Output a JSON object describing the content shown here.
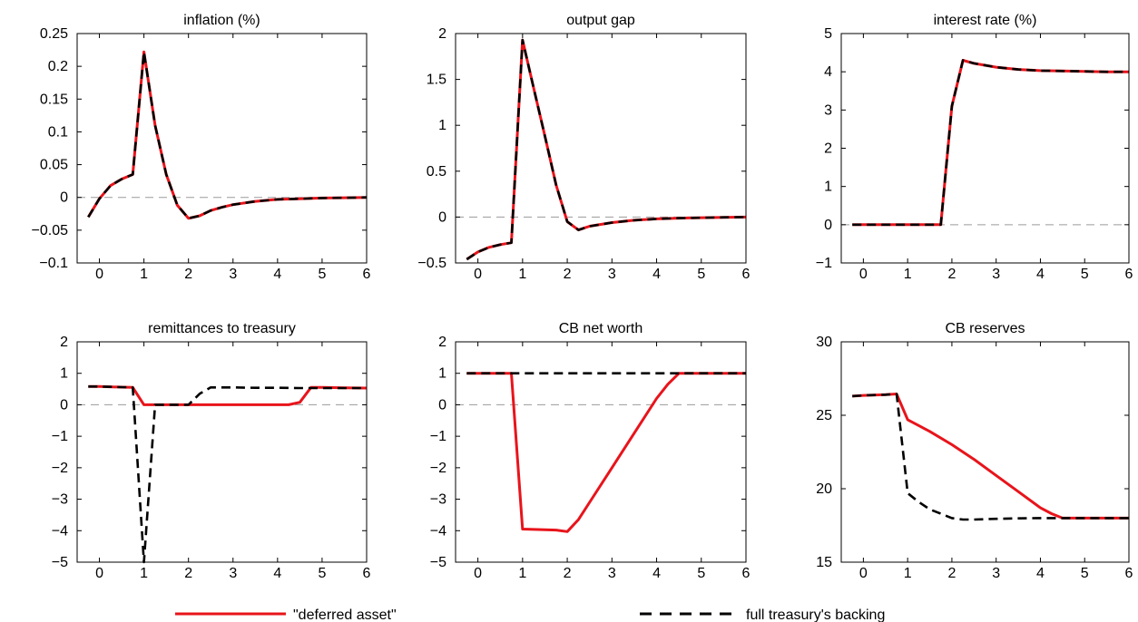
{
  "legend": {
    "red_label": "\"deferred asset\"",
    "black_label": "full treasury's backing"
  },
  "colors": {
    "deferred_asset": "#e8141b",
    "full_backing": "#000000",
    "zero_line": "#9a9a9a"
  },
  "chart_data": [
    {
      "type": "line",
      "title": "inflation (%)",
      "xlim": [
        -0.5,
        6
      ],
      "ylim": [
        -0.1,
        0.25
      ],
      "xticks": [
        0,
        1,
        2,
        3,
        4,
        5,
        6
      ],
      "yticks": [
        -0.1,
        -0.05,
        0,
        0.05,
        0.1,
        0.15,
        0.2,
        0.25
      ],
      "ytick_labels": [
        "−0.1",
        "−0.05",
        "0",
        "0.05",
        "0.1",
        "0.15",
        "0.2",
        "0.25"
      ],
      "zero_line": true,
      "series": [
        {
          "key": "deferred",
          "x": [
            -0.25,
            0,
            0.25,
            0.5,
            0.75,
            1,
            1.25,
            1.5,
            1.75,
            2,
            2.25,
            2.5,
            2.75,
            3,
            3.5,
            4,
            4.5,
            5,
            5.5,
            6
          ],
          "y": [
            -0.03,
            -0.002,
            0.018,
            0.028,
            0.035,
            0.222,
            0.11,
            0.035,
            -0.012,
            -0.032,
            -0.028,
            -0.02,
            -0.015,
            -0.011,
            -0.006,
            -0.003,
            -0.002,
            -0.001,
            -0.0005,
            0
          ]
        },
        {
          "key": "full",
          "x": [
            -0.25,
            0,
            0.25,
            0.5,
            0.75,
            1,
            1.25,
            1.5,
            1.75,
            2,
            2.25,
            2.5,
            2.75,
            3,
            3.5,
            4,
            4.5,
            5,
            5.5,
            6
          ],
          "y": [
            -0.03,
            -0.002,
            0.018,
            0.028,
            0.035,
            0.222,
            0.11,
            0.035,
            -0.012,
            -0.032,
            -0.028,
            -0.02,
            -0.015,
            -0.011,
            -0.006,
            -0.003,
            -0.002,
            -0.001,
            -0.0005,
            0
          ]
        }
      ]
    },
    {
      "type": "line",
      "title": "output gap",
      "xlim": [
        -0.5,
        6
      ],
      "ylim": [
        -0.5,
        2
      ],
      "xticks": [
        0,
        1,
        2,
        3,
        4,
        5,
        6
      ],
      "yticks": [
        -0.5,
        0,
        0.5,
        1,
        1.5,
        2
      ],
      "ytick_labels": [
        "−0.5",
        "0",
        "0.5",
        "1",
        "1.5",
        "2"
      ],
      "zero_line": true,
      "series": [
        {
          "key": "deferred",
          "x": [
            -0.25,
            0,
            0.25,
            0.5,
            0.75,
            1,
            1.25,
            1.5,
            1.75,
            2,
            2.25,
            2.5,
            3,
            3.5,
            4,
            4.5,
            5,
            5.5,
            6
          ],
          "y": [
            -0.46,
            -0.38,
            -0.33,
            -0.3,
            -0.28,
            1.93,
            1.4,
            0.88,
            0.35,
            -0.05,
            -0.14,
            -0.1,
            -0.06,
            -0.035,
            -0.02,
            -0.012,
            -0.007,
            -0.003,
            0
          ]
        },
        {
          "key": "full",
          "x": [
            -0.25,
            0,
            0.25,
            0.5,
            0.75,
            1,
            1.25,
            1.5,
            1.75,
            2,
            2.25,
            2.5,
            3,
            3.5,
            4,
            4.5,
            5,
            5.5,
            6
          ],
          "y": [
            -0.46,
            -0.38,
            -0.33,
            -0.3,
            -0.28,
            1.93,
            1.4,
            0.88,
            0.35,
            -0.05,
            -0.14,
            -0.1,
            -0.06,
            -0.035,
            -0.02,
            -0.012,
            -0.007,
            -0.003,
            0
          ]
        }
      ]
    },
    {
      "type": "line",
      "title": "interest rate (%)",
      "xlim": [
        -0.5,
        6
      ],
      "ylim": [
        -1,
        5
      ],
      "xticks": [
        0,
        1,
        2,
        3,
        4,
        5,
        6
      ],
      "yticks": [
        -1,
        0,
        1,
        2,
        3,
        4,
        5
      ],
      "ytick_labels": [
        "−1",
        "0",
        "1",
        "2",
        "3",
        "4",
        "5"
      ],
      "zero_line": true,
      "series": [
        {
          "key": "deferred",
          "x": [
            -0.25,
            0,
            0.5,
            1,
            1.5,
            1.75,
            2,
            2.25,
            2.5,
            3,
            3.5,
            4,
            4.5,
            5,
            5.5,
            6
          ],
          "y": [
            0,
            0,
            0,
            0,
            0,
            0,
            3.1,
            4.3,
            4.22,
            4.12,
            4.06,
            4.03,
            4.02,
            4.01,
            4.0,
            4.0
          ]
        },
        {
          "key": "full",
          "x": [
            -0.25,
            0,
            0.5,
            1,
            1.5,
            1.75,
            2,
            2.25,
            2.5,
            3,
            3.5,
            4,
            4.5,
            5,
            5.5,
            6
          ],
          "y": [
            0,
            0,
            0,
            0,
            0,
            0,
            3.1,
            4.3,
            4.22,
            4.12,
            4.06,
            4.03,
            4.02,
            4.01,
            4.0,
            4.0
          ]
        }
      ]
    },
    {
      "type": "line",
      "title": "remittances to treasury",
      "xlim": [
        -0.5,
        6
      ],
      "ylim": [
        -5,
        2
      ],
      "xticks": [
        0,
        1,
        2,
        3,
        4,
        5,
        6
      ],
      "yticks": [
        -5,
        -4,
        -3,
        -2,
        -1,
        0,
        1,
        2
      ],
      "ytick_labels": [
        "−5",
        "−4",
        "−3",
        "−2",
        "−1",
        "0",
        "1",
        "2"
      ],
      "zero_line": true,
      "series": [
        {
          "key": "deferred",
          "x": [
            -0.25,
            0,
            0.5,
            0.75,
            1,
            1.25,
            1.5,
            2,
            2.5,
            3,
            3.5,
            4,
            4.25,
            4.5,
            4.75,
            5,
            5.5,
            6
          ],
          "y": [
            0.58,
            0.58,
            0.56,
            0.55,
            0.0,
            0.0,
            0.0,
            0.0,
            0.0,
            0.0,
            0.0,
            0.0,
            0.0,
            0.08,
            0.55,
            0.55,
            0.54,
            0.53
          ]
        },
        {
          "key": "full",
          "x": [
            -0.25,
            0,
            0.5,
            0.75,
            1,
            1.25,
            1.5,
            2,
            2.25,
            2.5,
            3,
            3.5,
            4,
            4.5,
            5,
            5.5,
            6
          ],
          "y": [
            0.58,
            0.58,
            0.56,
            0.55,
            -5.0,
            0.0,
            0.0,
            0.0,
            0.35,
            0.55,
            0.55,
            0.54,
            0.54,
            0.53,
            0.53,
            0.53,
            0.53
          ]
        }
      ]
    },
    {
      "type": "line",
      "title": "CB net worth",
      "xlim": [
        -0.5,
        6
      ],
      "ylim": [
        -5,
        2
      ],
      "xticks": [
        0,
        1,
        2,
        3,
        4,
        5,
        6
      ],
      "yticks": [
        -5,
        -4,
        -3,
        -2,
        -1,
        0,
        1,
        2
      ],
      "ytick_labels": [
        "−5",
        "−4",
        "−3",
        "−2",
        "−1",
        "0",
        "1",
        "2"
      ],
      "zero_line": true,
      "series": [
        {
          "key": "deferred",
          "x": [
            -0.25,
            0,
            0.5,
            0.75,
            1,
            1.5,
            1.75,
            2,
            2.25,
            2.5,
            3,
            3.5,
            4,
            4.25,
            4.5,
            5,
            5.5,
            6
          ],
          "y": [
            1,
            1,
            1,
            1,
            -3.95,
            -3.97,
            -3.98,
            -4.03,
            -3.65,
            -3.1,
            -2.0,
            -0.9,
            0.2,
            0.65,
            1,
            1,
            1,
            1
          ]
        },
        {
          "key": "full",
          "x": [
            -0.25,
            0,
            1,
            2,
            3,
            4,
            5,
            6
          ],
          "y": [
            1,
            1,
            1,
            1,
            1,
            1,
            1,
            1
          ]
        }
      ]
    },
    {
      "type": "line",
      "title": "CB reserves",
      "xlim": [
        -0.5,
        6
      ],
      "ylim": [
        15,
        30
      ],
      "xticks": [
        0,
        1,
        2,
        3,
        4,
        5,
        6
      ],
      "yticks": [
        15,
        20,
        25,
        30
      ],
      "ytick_labels": [
        "15",
        "20",
        "25",
        "30"
      ],
      "zero_line": false,
      "series": [
        {
          "key": "deferred",
          "x": [
            -0.25,
            0,
            0.5,
            0.75,
            1,
            1.5,
            2,
            2.5,
            3,
            3.5,
            4,
            4.25,
            4.5,
            5,
            5.5,
            6
          ],
          "y": [
            26.3,
            26.35,
            26.4,
            26.45,
            24.7,
            23.9,
            23.0,
            22.0,
            20.9,
            19.8,
            18.7,
            18.3,
            18.0,
            18.0,
            18.0,
            18.0
          ]
        },
        {
          "key": "full",
          "x": [
            -0.25,
            0,
            0.5,
            0.75,
            1,
            1.25,
            1.5,
            2,
            2.25,
            2.5,
            3,
            3.5,
            4,
            5,
            6
          ],
          "y": [
            26.3,
            26.35,
            26.4,
            26.45,
            19.7,
            19.1,
            18.6,
            18.0,
            17.9,
            17.9,
            17.95,
            17.98,
            18.0,
            18.0,
            18.0
          ]
        }
      ]
    }
  ]
}
